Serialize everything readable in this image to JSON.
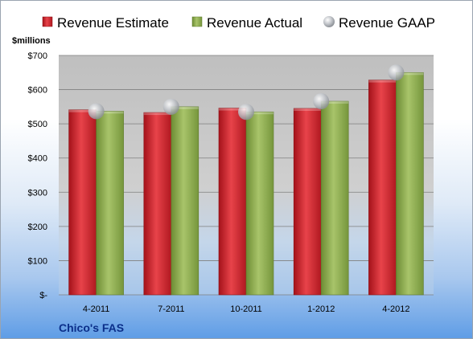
{
  "chart_data": {
    "type": "bar",
    "unit_label": "$millions",
    "categories": [
      "4-2011",
      "7-2011",
      "10-2011",
      "1-2012",
      "4-2012"
    ],
    "series": [
      {
        "name": "Revenue Estimate",
        "kind": "bar",
        "color": "#d7262c",
        "values": [
          541,
          533,
          546,
          545,
          628
        ]
      },
      {
        "name": "Revenue Actual",
        "kind": "bar",
        "color": "#8fb050",
        "values": [
          537,
          550,
          535,
          566,
          650
        ]
      },
      {
        "name": "Revenue GAAP",
        "kind": "marker",
        "color": "#b5b8bd",
        "values": [
          537,
          550,
          535,
          566,
          650
        ]
      }
    ],
    "ylim": [
      0,
      700
    ],
    "yticks": [
      0,
      100,
      200,
      300,
      400,
      500,
      600,
      700
    ],
    "ytick_labels": [
      "$-",
      "$100",
      "$200",
      "$300",
      "$400",
      "$500",
      "$600",
      "$700"
    ],
    "grid": true,
    "legend_position": "top"
  },
  "footer": {
    "brand": "Chico's FAS"
  }
}
